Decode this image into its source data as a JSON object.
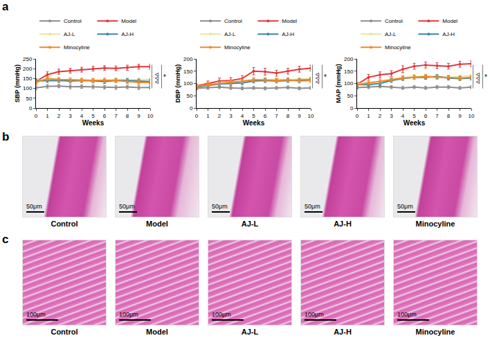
{
  "panel_a_label": "a",
  "chart_data": [
    {
      "type": "line",
      "xlabel": "Weeks",
      "ylabel": "SBP (mmHg)",
      "x": [
        0,
        1,
        2,
        3,
        4,
        5,
        6,
        7,
        8,
        9,
        10
      ],
      "xlim": [
        0,
        10
      ],
      "xticks": [
        0,
        1,
        2,
        3,
        4,
        5,
        6,
        7,
        8,
        9,
        10
      ],
      "ylim": [
        0,
        250
      ],
      "yticks": [
        0,
        50,
        100,
        150,
        200,
        250
      ],
      "legend": "top",
      "marker": "circle",
      "annotations": [
        "ΔΔΔ",
        "*"
      ],
      "series": [
        {
          "name": "Control",
          "color": "#8c8c8c",
          "values": [
            103,
            110,
            112,
            108,
            109,
            108,
            106,
            105,
            107,
            104,
            105
          ],
          "error": [
            10,
            9,
            9,
            10,
            9,
            10,
            9,
            10,
            9,
            10,
            9
          ]
        },
        {
          "name": "Model",
          "color": "#e0393e",
          "values": [
            135,
            170,
            185,
            190,
            195,
            200,
            203,
            202,
            205,
            210,
            210
          ],
          "error": [
            12,
            14,
            13,
            12,
            12,
            12,
            12,
            12,
            13,
            12,
            12
          ]
        },
        {
          "name": "AJ-L",
          "color": "#eee39a",
          "values": [
            140,
            145,
            142,
            143,
            145,
            142,
            140,
            145,
            143,
            145,
            145
          ],
          "error": [
            10,
            10,
            10,
            10,
            10,
            10,
            10,
            10,
            10,
            10,
            10
          ]
        },
        {
          "name": "AJ-H",
          "color": "#3a85a8",
          "values": [
            138,
            140,
            140,
            137,
            140,
            138,
            135,
            140,
            140,
            137,
            135
          ],
          "error": [
            10,
            10,
            10,
            10,
            10,
            10,
            10,
            10,
            10,
            10,
            10
          ]
        },
        {
          "name": "Minocyline",
          "color": "#f08a24",
          "values": [
            130,
            150,
            145,
            143,
            140,
            140,
            142,
            140,
            135,
            130,
            130
          ],
          "error": [
            10,
            10,
            10,
            10,
            10,
            10,
            10,
            10,
            10,
            10,
            10
          ]
        }
      ]
    },
    {
      "type": "line",
      "xlabel": "Weeks",
      "ylabel": "DBP (mmHg)",
      "x": [
        0,
        1,
        2,
        3,
        4,
        5,
        6,
        7,
        8,
        9,
        10
      ],
      "xlim": [
        0,
        10
      ],
      "xticks": [
        0,
        1,
        2,
        3,
        4,
        5,
        6,
        7,
        8,
        9,
        10
      ],
      "ylim": [
        0,
        200
      ],
      "yticks": [
        0,
        50,
        100,
        150,
        200
      ],
      "legend": "top",
      "marker": "circle",
      "annotations": [
        "ΔΔΔ",
        "*"
      ],
      "series": [
        {
          "name": "Control",
          "color": "#8c8c8c",
          "values": [
            80,
            82,
            85,
            82,
            80,
            82,
            80,
            82,
            84,
            80,
            82
          ],
          "error": [
            6,
            6,
            6,
            6,
            6,
            6,
            6,
            6,
            6,
            6,
            6
          ]
        },
        {
          "name": "Model",
          "color": "#e0393e",
          "values": [
            90,
            100,
            110,
            112,
            120,
            150,
            148,
            142,
            150,
            158,
            162
          ],
          "error": [
            8,
            10,
            12,
            12,
            12,
            15,
            14,
            12,
            12,
            12,
            12
          ]
        },
        {
          "name": "AJ-L",
          "color": "#eee39a",
          "values": [
            88,
            95,
            100,
            105,
            108,
            115,
            112,
            118,
            115,
            118,
            120
          ],
          "error": [
            8,
            8,
            8,
            8,
            8,
            8,
            8,
            8,
            8,
            8,
            8
          ]
        },
        {
          "name": "AJ-H",
          "color": "#3a85a8",
          "values": [
            85,
            92,
            98,
            100,
            102,
            110,
            112,
            110,
            112,
            112,
            115
          ],
          "error": [
            8,
            8,
            8,
            8,
            8,
            8,
            8,
            8,
            8,
            8,
            8
          ]
        },
        {
          "name": "Minocyline",
          "color": "#f08a24",
          "values": [
            88,
            95,
            100,
            105,
            110,
            115,
            115,
            112,
            115,
            110,
            112
          ],
          "error": [
            8,
            8,
            8,
            8,
            8,
            8,
            8,
            8,
            8,
            8,
            8
          ]
        }
      ]
    },
    {
      "type": "line",
      "xlabel": "Weeks",
      "ylabel": "MAP (mmHg)",
      "x": [
        0,
        1,
        2,
        3,
        4,
        5,
        6,
        7,
        8,
        9,
        10
      ],
      "xlim": [
        0,
        10
      ],
      "xticks": [
        0,
        1,
        2,
        3,
        4,
        5,
        6,
        7,
        8,
        9,
        10
      ],
      "ylim": [
        0,
        200
      ],
      "yticks": [
        0,
        50,
        100,
        150,
        200
      ],
      "legend": "top",
      "marker": "circle",
      "annotations": [
        "ΔΔΔ",
        "*"
      ],
      "series": [
        {
          "name": "Control",
          "color": "#8c8c8c",
          "values": [
            83,
            85,
            88,
            85,
            82,
            85,
            82,
            85,
            85,
            82,
            85
          ],
          "error": [
            6,
            6,
            6,
            6,
            6,
            6,
            6,
            6,
            6,
            6,
            6
          ]
        },
        {
          "name": "Model",
          "color": "#e0393e",
          "values": [
            97,
            125,
            135,
            140,
            158,
            170,
            175,
            172,
            170,
            178,
            180
          ],
          "error": [
            8,
            12,
            12,
            12,
            14,
            12,
            12,
            12,
            12,
            12,
            12
          ]
        },
        {
          "name": "AJ-L",
          "color": "#eee39a",
          "values": [
            98,
            105,
            108,
            118,
            125,
            128,
            130,
            128,
            125,
            128,
            130
          ],
          "error": [
            8,
            8,
            8,
            8,
            8,
            8,
            8,
            8,
            8,
            8,
            8
          ]
        },
        {
          "name": "AJ-H",
          "color": "#3a85a8",
          "values": [
            95,
            95,
            100,
            112,
            120,
            125,
            125,
            128,
            122,
            120,
            122
          ],
          "error": [
            8,
            8,
            8,
            8,
            8,
            8,
            8,
            8,
            8,
            8,
            8
          ]
        },
        {
          "name": "Minocyline",
          "color": "#f08a24",
          "values": [
            95,
            102,
            108,
            115,
            122,
            125,
            128,
            125,
            125,
            122,
            125
          ],
          "error": [
            8,
            8,
            8,
            8,
            8,
            8,
            8,
            8,
            8,
            8,
            8
          ]
        }
      ]
    }
  ],
  "image_panels": [
    {
      "label": "b",
      "scale_bar": "50μm",
      "captions": [
        "Control",
        "Model",
        "AJ-L",
        "AJ-H",
        "Minocyline"
      ]
    },
    {
      "label": "c",
      "scale_bar": "100μm",
      "captions": [
        "Control",
        "Model",
        "AJ-L",
        "AJ-H",
        "Minocyline"
      ]
    }
  ]
}
